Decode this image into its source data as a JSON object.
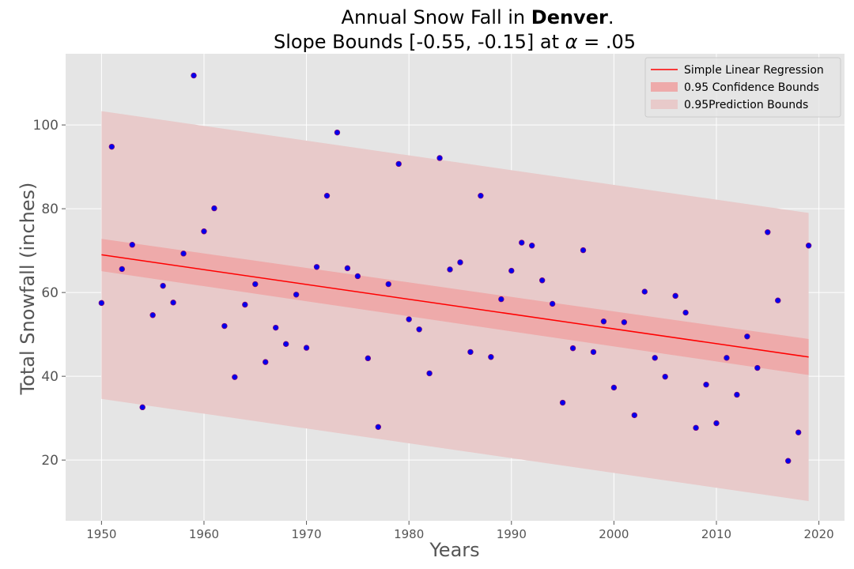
{
  "chart_data": {
    "type": "scatter",
    "title_line1_prefix": "Annual Snow Fall in ",
    "title_line1_bold": "Denver",
    "title_line1_suffix": ".",
    "title_line2_prefix": "Slope Bounds [-0.55, -0.15] at ",
    "title_line2_symbol": "α",
    "title_line2_suffix": " = .05",
    "xlabel": "Years",
    "ylabel": "Total Snowfall (inches)",
    "xlim": [
      1946.5,
      2022.5
    ],
    "ylim": [
      5.5,
      117
    ],
    "xticks": [
      1950,
      1960,
      1970,
      1980,
      1990,
      2000,
      2010,
      2020
    ],
    "yticks": [
      20,
      40,
      60,
      80,
      100
    ],
    "grid": true,
    "legend_position": "top-right",
    "legend": [
      "Simple Linear Regression",
      "0.95 Confidence Bounds",
      "0.95Prediction Bounds"
    ],
    "colors": {
      "background": "#e5e5e5",
      "grid": "#ffffff",
      "points": "#0000ee",
      "point_edge": "#7a0080",
      "regression": "#ff0000",
      "confidence": "#eeaaaa",
      "prediction": "#e8caca"
    },
    "regression": {
      "x": [
        1950,
        2019
      ],
      "y": [
        69.0,
        44.6
      ]
    },
    "confidence_band": {
      "x": [
        1950,
        2019
      ],
      "upper": [
        72.8,
        48.9
      ],
      "lower": [
        65.1,
        40.3
      ]
    },
    "prediction_band": {
      "x": [
        1950,
        2019
      ],
      "upper": [
        103.3,
        79.0
      ],
      "lower": [
        34.6,
        10.2
      ]
    },
    "points": {
      "x": [
        1950,
        1951,
        1952,
        1953,
        1954,
        1955,
        1956,
        1957,
        1958,
        1959,
        1960,
        1961,
        1962,
        1963,
        1964,
        1965,
        1966,
        1967,
        1968,
        1969,
        1970,
        1971,
        1972,
        1973,
        1974,
        1975,
        1976,
        1977,
        1978,
        1979,
        1980,
        1981,
        1982,
        1983,
        1984,
        1985,
        1986,
        1987,
        1988,
        1989,
        1990,
        1991,
        1992,
        1993,
        1994,
        1995,
        1996,
        1997,
        1998,
        1999,
        2000,
        2001,
        2002,
        2003,
        2004,
        2005,
        2006,
        2007,
        2008,
        2009,
        2010,
        2011,
        2012,
        2013,
        2014,
        2015,
        2016,
        2017,
        2018,
        2019
      ],
      "y": [
        57.5,
        94.8,
        65.6,
        71.4,
        32.6,
        54.6,
        61.6,
        57.6,
        69.3,
        111.8,
        74.6,
        80.1,
        52.0,
        39.8,
        57.1,
        62.0,
        43.4,
        51.6,
        47.7,
        59.5,
        46.8,
        66.1,
        83.1,
        98.2,
        65.8,
        63.9,
        44.3,
        27.9,
        62.0,
        90.7,
        53.6,
        51.2,
        40.7,
        92.1,
        65.5,
        67.2,
        45.8,
        83.1,
        44.6,
        58.4,
        65.2,
        71.9,
        71.2,
        62.9,
        57.3,
        33.7,
        46.7,
        70.1,
        45.8,
        53.1,
        37.3,
        52.9,
        30.7,
        60.2,
        44.4,
        39.9,
        59.2,
        55.2,
        27.7,
        38.0,
        28.8,
        44.4,
        35.6,
        49.5,
        42.0,
        74.4,
        58.1,
        19.8,
        26.6,
        71.2
      ]
    }
  }
}
